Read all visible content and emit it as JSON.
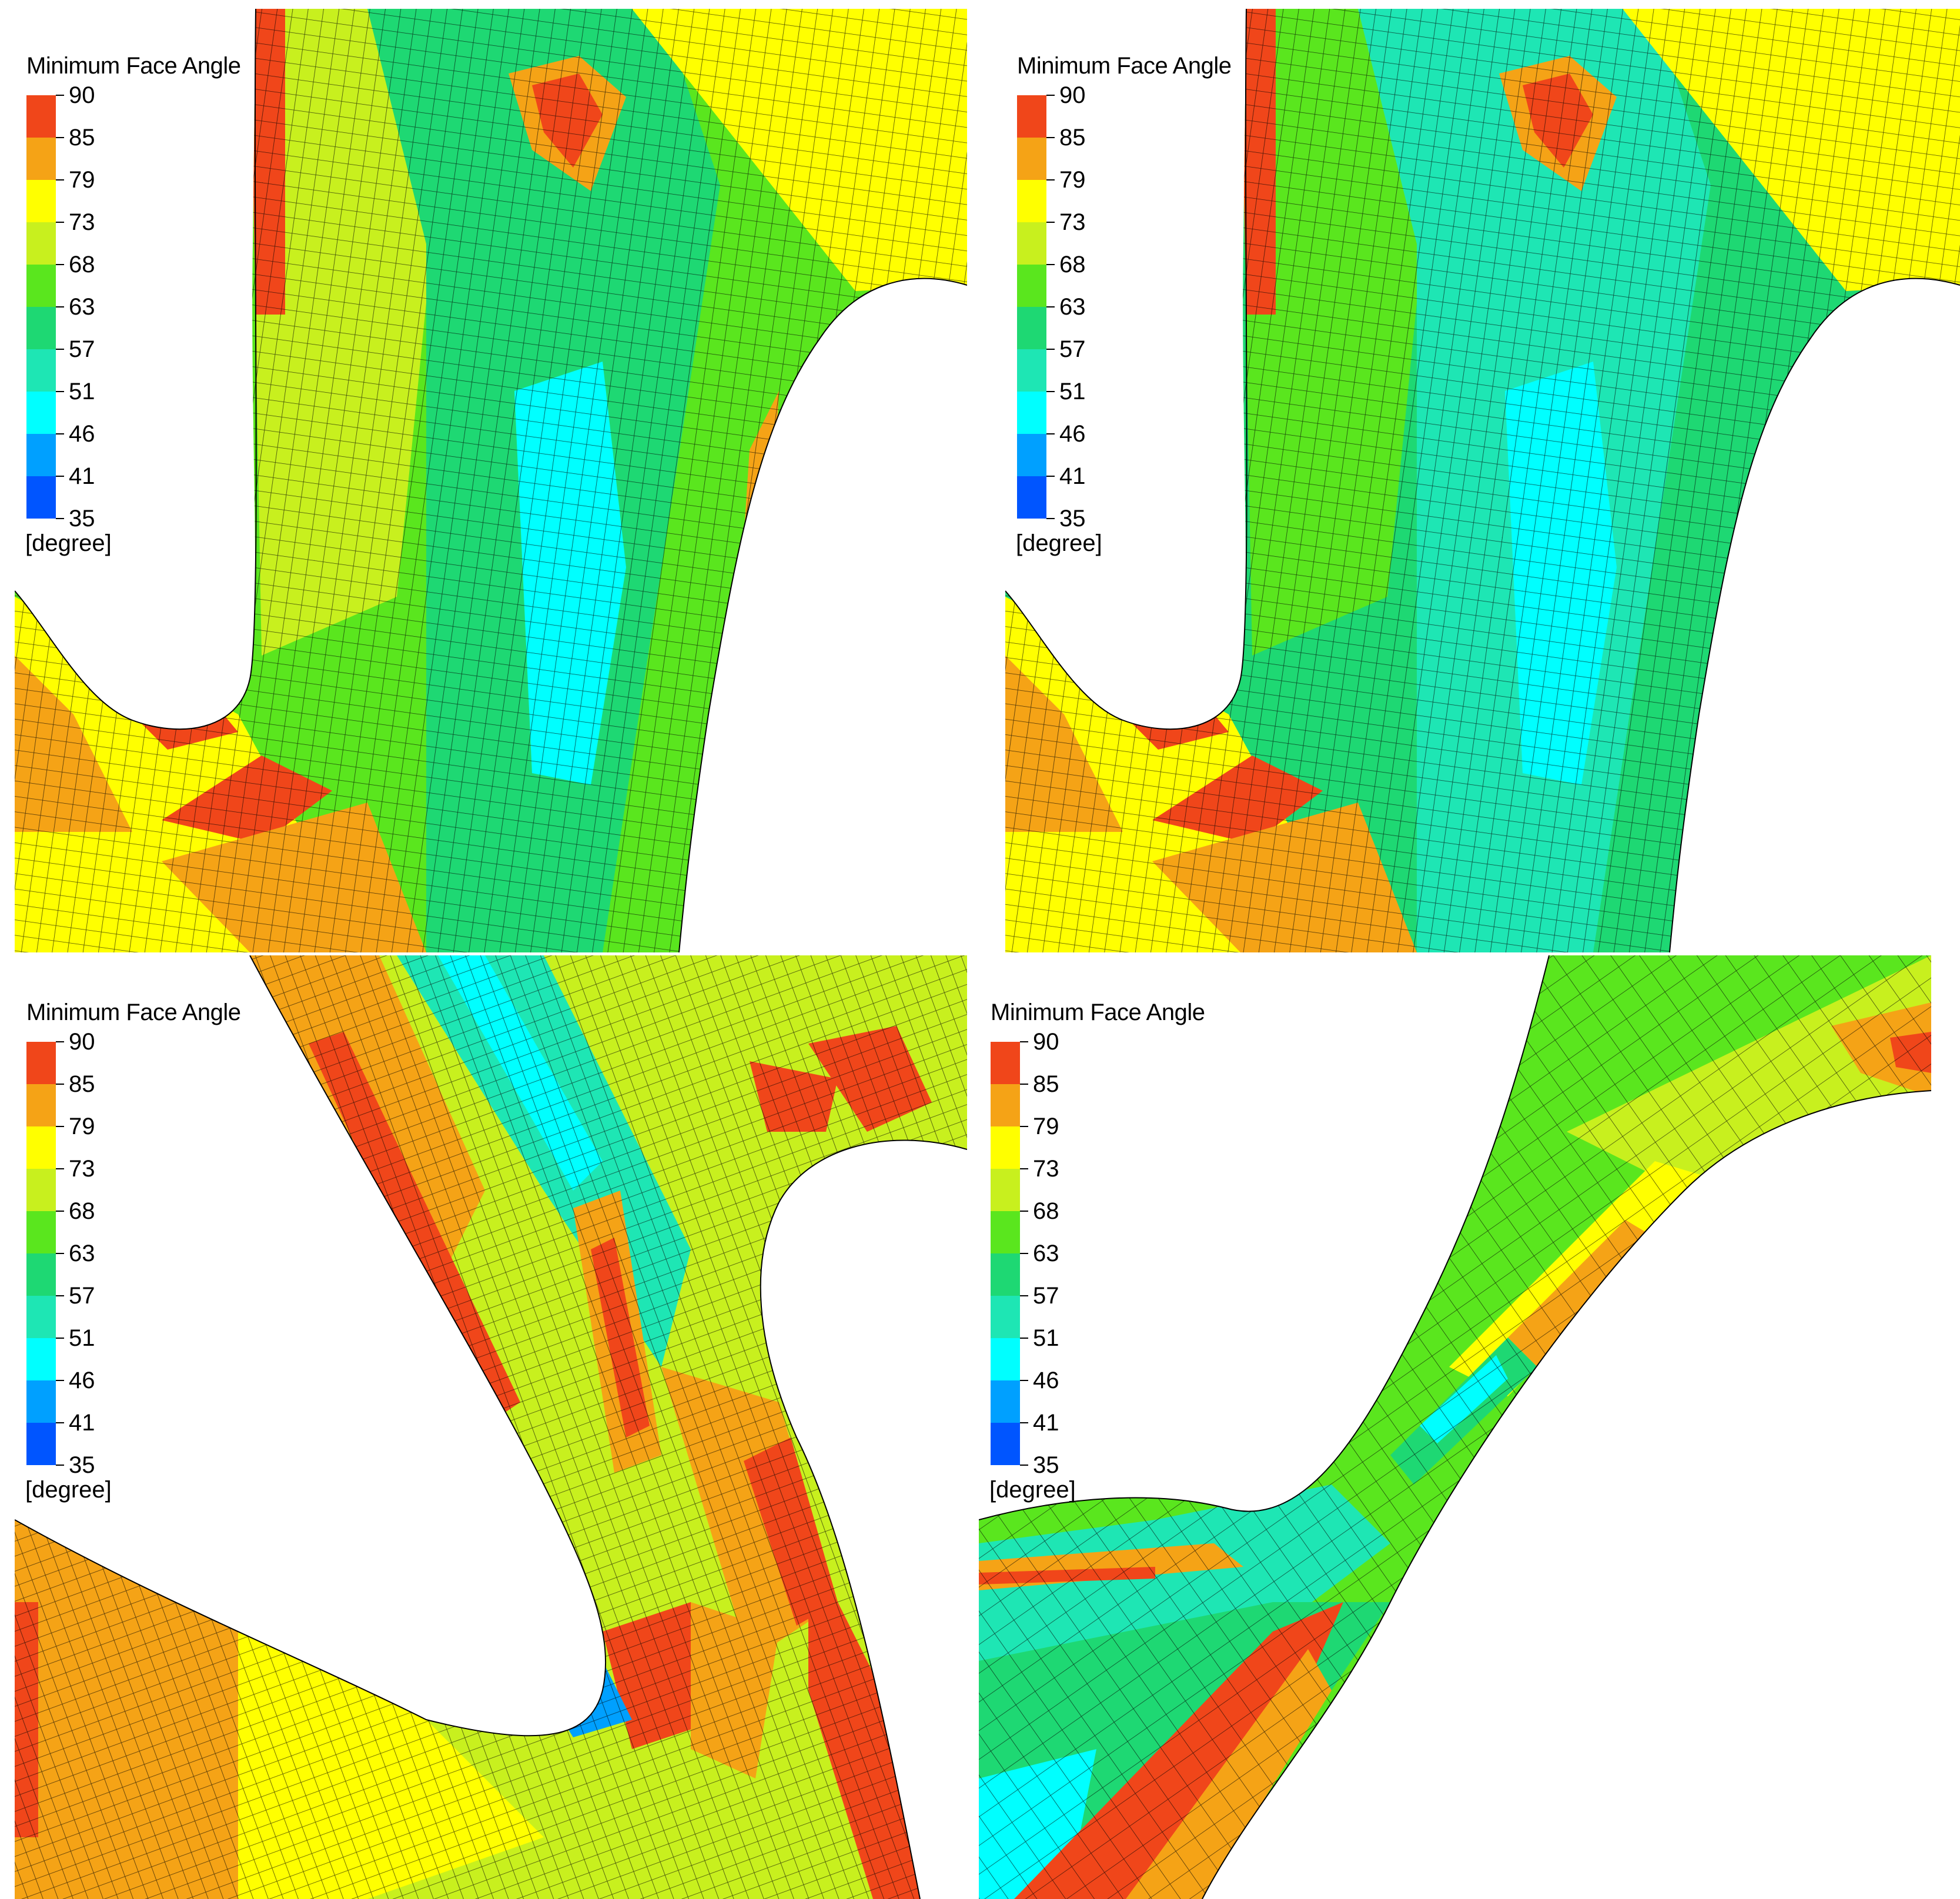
{
  "legend": {
    "title": "Minimum Face Angle",
    "unit": "[degree]",
    "labels": [
      "90",
      "85",
      "79",
      "73",
      "68",
      "63",
      "57",
      "51",
      "46",
      "41",
      "35"
    ],
    "colors": [
      "#f0461a",
      "#f5a316",
      "#ffff00",
      "#c8f01e",
      "#5ae61e",
      "#1ed873",
      "#1ee6b4",
      "#00ffff",
      "#00a0ff",
      "#0055ff"
    ]
  },
  "panels": [
    {
      "title": "Minimum Face Angle",
      "unit": "[degree]"
    },
    {
      "title": "Minimum Face Angle",
      "unit": "[degree]"
    },
    {
      "title": "Minimum Face Angle",
      "unit": "[degree]"
    },
    {
      "title": "Minimum Face Angle",
      "unit": "[degree]"
    }
  ]
}
